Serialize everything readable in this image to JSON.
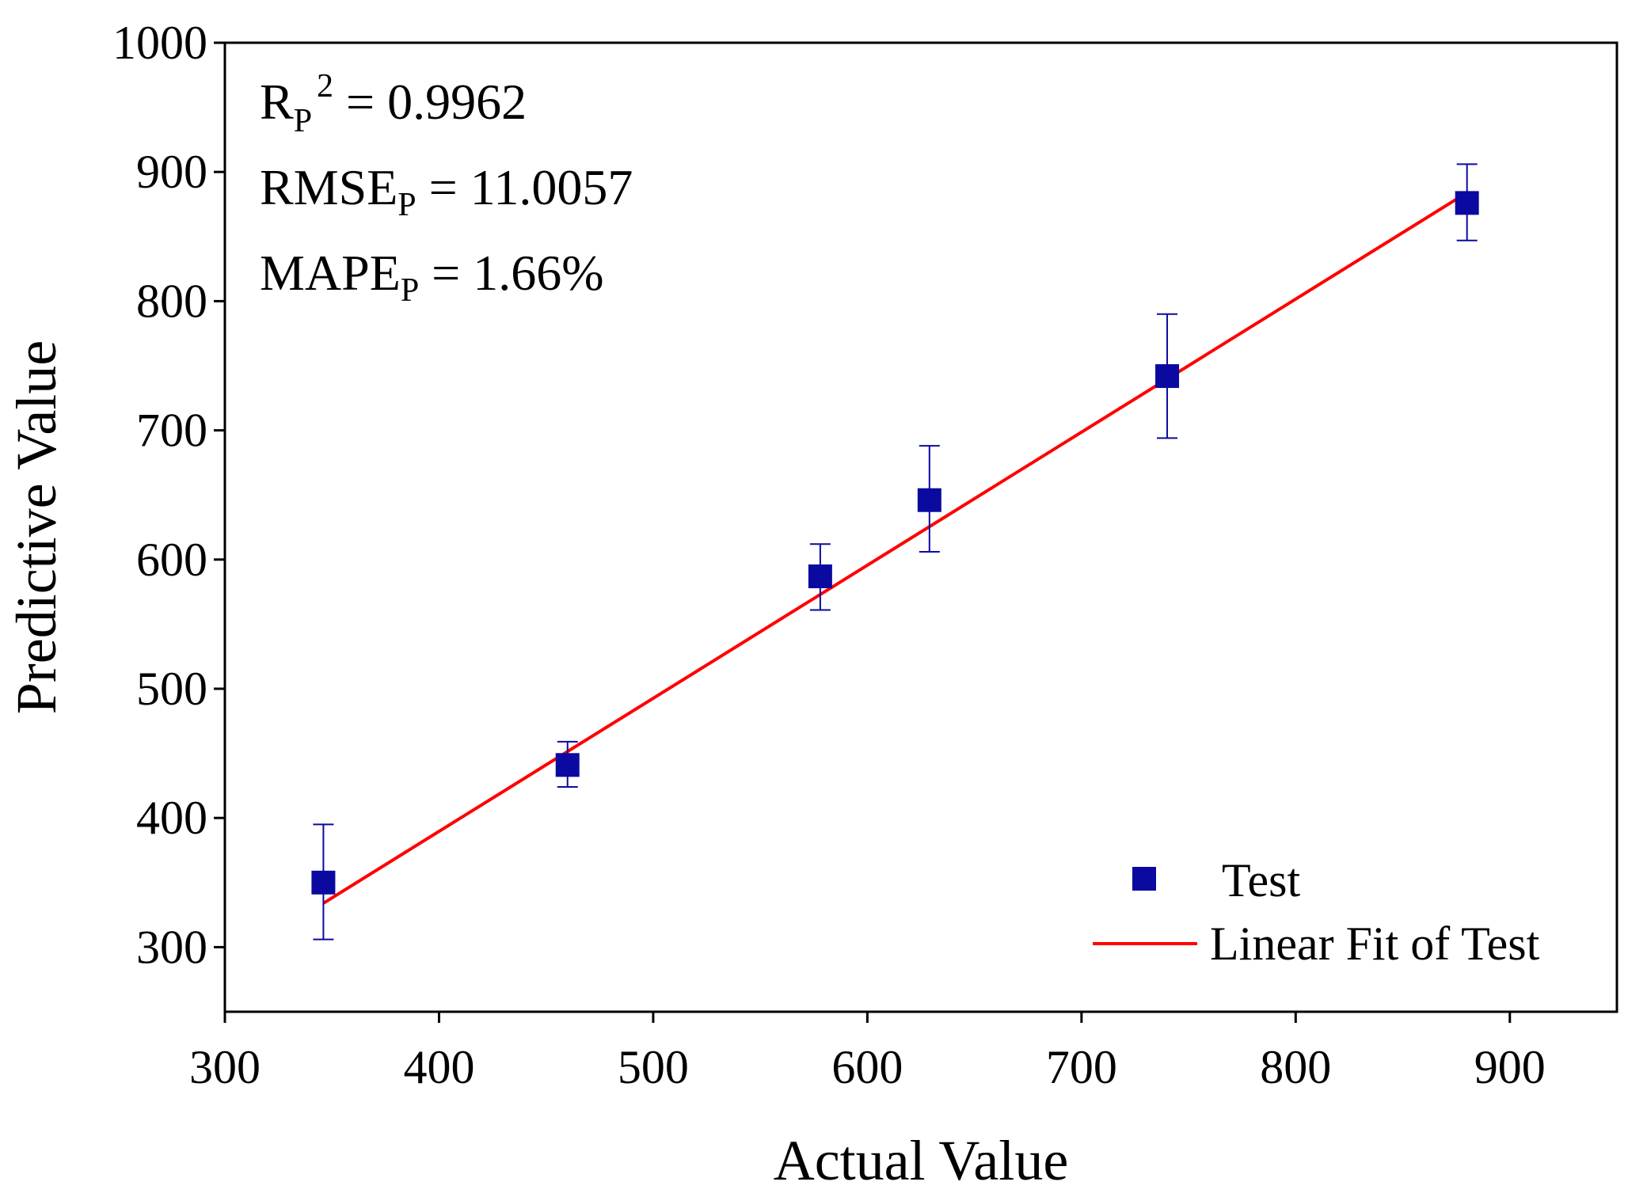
{
  "chart_data": {
    "type": "scatter",
    "xlabel": "Actual Value",
    "ylabel": "Predictive Value",
    "xlim": [
      300,
      950
    ],
    "ylim": [
      250,
      1000
    ],
    "xticks": [
      300,
      400,
      500,
      600,
      700,
      800,
      900
    ],
    "yticks": [
      300,
      400,
      500,
      600,
      700,
      800,
      900,
      1000
    ],
    "series": [
      {
        "name": "Test",
        "marker": "square",
        "color": "#0a0aa0",
        "points": [
          {
            "x": 346,
            "y": 350,
            "err_low": 306,
            "err_high": 395
          },
          {
            "x": 460,
            "y": 441,
            "err_low": 424,
            "err_high": 459
          },
          {
            "x": 578,
            "y": 587,
            "err_low": 561,
            "err_high": 612
          },
          {
            "x": 629,
            "y": 646,
            "err_low": 606,
            "err_high": 688
          },
          {
            "x": 740,
            "y": 742,
            "err_low": 694,
            "err_high": 790
          },
          {
            "x": 880,
            "y": 876,
            "err_low": 847,
            "err_high": 906
          }
        ]
      },
      {
        "name": "Linear Fit of Test",
        "type": "line",
        "color": "#ff0000",
        "x": [
          346,
          880
        ],
        "y": [
          334,
          884
        ]
      }
    ],
    "annotations": [
      {
        "main": "R",
        "sub": "P",
        "sup": "2",
        "rest": " = 0.9962"
      },
      {
        "main": "RMSE",
        "sub": "P",
        "rest": " = 11.0057"
      },
      {
        "main": "MAPE",
        "sub": "P",
        "rest": " = 1.66%"
      }
    ],
    "legend": {
      "location": "bottom-right",
      "entries": [
        "Test",
        "Linear Fit of Test"
      ]
    }
  }
}
